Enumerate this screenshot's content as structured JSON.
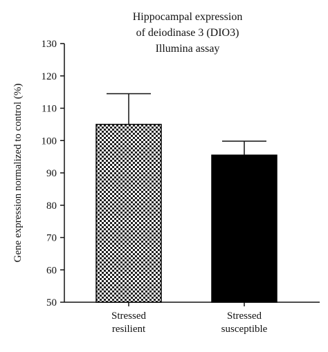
{
  "chart_data": {
    "type": "bar",
    "title": "Hippocampal expression\nof deiodinase 3 (DIO3)\nIllumina assay",
    "ylabel": "Gene expression normalized to control (%)",
    "xlabel": "",
    "ylim": [
      50,
      130
    ],
    "yticks": [
      50,
      60,
      70,
      80,
      90,
      100,
      110,
      120,
      130
    ],
    "grid": false,
    "categories": [
      "Stressed\nresilient",
      "Stressed\nsusceptible"
    ],
    "values": [
      105,
      95.5
    ],
    "errors_upper": [
      9.5,
      4.3
    ],
    "bar_fills": [
      "checkerboard",
      "#000000"
    ],
    "colors": {
      "axis": "#111111",
      "checker_dark": "#222222",
      "checker_light": "#ffffff",
      "solid_bar": "#000000"
    }
  }
}
